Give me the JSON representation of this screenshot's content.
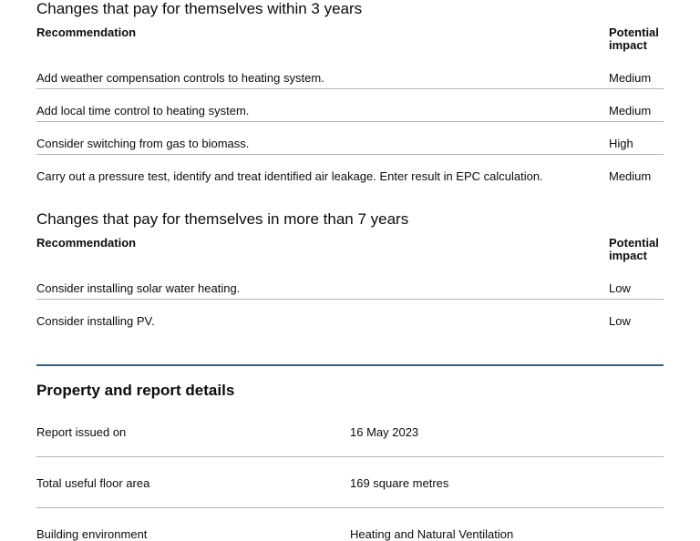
{
  "colors": {
    "background": "#ffffff",
    "text": "#0b0c0c",
    "table_divider": "#b1b4b6",
    "section_break": "#38607c"
  },
  "recommendation_tables": [
    {
      "title": "Changes that pay for themselves within 3 years",
      "columns": {
        "recommendation": "Recommendation",
        "impact": "Potential impact"
      },
      "rows": [
        {
          "recommendation": "Add weather compensation controls to heating system.",
          "impact": "Medium"
        },
        {
          "recommendation": "Add local time control to heating system.",
          "impact": "Medium"
        },
        {
          "recommendation": "Consider switching from gas to biomass.",
          "impact": "High"
        },
        {
          "recommendation": "Carry out a pressure test, identify and treat identified air leakage. Enter result in EPC calculation.",
          "impact": "Medium"
        }
      ]
    },
    {
      "title": "Changes that pay for themselves in more than 7 years",
      "columns": {
        "recommendation": "Recommendation",
        "impact": "Potential impact"
      },
      "rows": [
        {
          "recommendation": "Consider installing solar water heating.",
          "impact": "Low"
        },
        {
          "recommendation": "Consider installing PV.",
          "impact": "Low"
        }
      ]
    }
  ],
  "property_details": {
    "heading": "Property and report details",
    "rows": [
      {
        "label": "Report issued on",
        "value": "16 May 2023"
      },
      {
        "label": "Total useful floor area",
        "value": "169 square metres"
      },
      {
        "label": "Building environment",
        "value": "Heating and Natural Ventilation"
      }
    ]
  }
}
